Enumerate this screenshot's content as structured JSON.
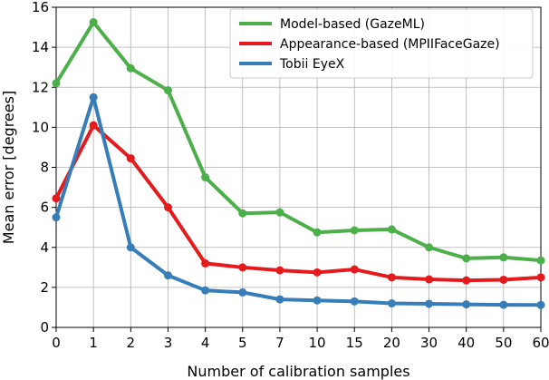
{
  "chart_data": {
    "type": "line",
    "title": "",
    "xlabel": "Number of calibration samples",
    "ylabel": "Mean error [degrees]",
    "categories": [
      "0",
      "1",
      "2",
      "3",
      "4",
      "5",
      "7",
      "10",
      "15",
      "20",
      "30",
      "40",
      "50",
      "60"
    ],
    "ylim": [
      0,
      16
    ],
    "yticks": [
      "0",
      "2",
      "4",
      "6",
      "8",
      "10",
      "12",
      "14",
      "16"
    ],
    "grid": true,
    "legend_position": "top-right",
    "series": [
      {
        "name": "Model-based (GazeML)",
        "color": "#4daf4a",
        "values": [
          12.2,
          15.25,
          12.95,
          11.85,
          7.5,
          5.7,
          5.75,
          4.75,
          4.85,
          4.9,
          4.0,
          3.45,
          3.5,
          3.35
        ]
      },
      {
        "name": "Appearance-based (MPIIFaceGaze)",
        "color": "#e41a1c",
        "values": [
          6.45,
          10.1,
          8.45,
          6.0,
          3.2,
          3.0,
          2.85,
          2.75,
          2.9,
          2.5,
          2.4,
          2.35,
          2.38,
          2.5
        ]
      },
      {
        "name": "Tobii EyeX",
        "color": "#377eb8",
        "values": [
          5.5,
          11.5,
          4.0,
          2.6,
          1.85,
          1.75,
          1.4,
          1.35,
          1.3,
          1.2,
          1.18,
          1.15,
          1.13,
          1.12
        ]
      }
    ]
  }
}
